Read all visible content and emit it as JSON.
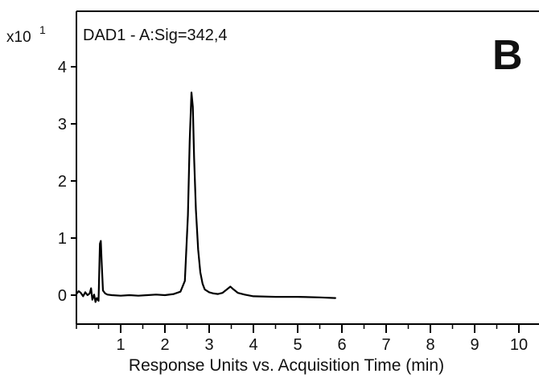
{
  "chart_data": {
    "type": "line",
    "panel_label": "B",
    "signal_label": "DAD1 - A:Sig=342,4",
    "y_multiplier_label": "x10",
    "y_multiplier_exponent": "1",
    "xlabel": "Response Units vs. Acquisition Time (min)",
    "ylabel": "",
    "xlim": [
      0,
      10.3
    ],
    "ylim": [
      -0.5,
      4.6
    ],
    "x_ticks": [
      1,
      2,
      3,
      4,
      5,
      6,
      7,
      8,
      9,
      10
    ],
    "y_ticks": [
      0,
      1,
      2,
      3,
      4
    ],
    "x_minor_ticks": [
      0,
      0.5,
      1.5,
      2.5,
      3.5,
      4.5,
      5.5,
      6.5,
      7.5,
      8.5,
      9.5
    ],
    "grid": false,
    "series": [
      {
        "color": "#000000",
        "x": [
          0.0,
          0.05,
          0.1,
          0.15,
          0.2,
          0.25,
          0.3,
          0.33,
          0.36,
          0.4,
          0.43,
          0.46,
          0.5,
          0.53,
          0.55,
          0.57,
          0.6,
          0.65,
          0.7,
          0.8,
          1.0,
          1.2,
          1.4,
          1.6,
          1.8,
          2.0,
          2.2,
          2.35,
          2.45,
          2.52,
          2.56,
          2.6,
          2.63,
          2.66,
          2.7,
          2.75,
          2.8,
          2.85,
          2.9,
          3.0,
          3.1,
          3.2,
          3.3,
          3.4,
          3.48,
          3.55,
          3.65,
          3.8,
          4.0,
          4.5,
          5.0,
          5.5,
          5.85
        ],
        "y": [
          0.02,
          0.07,
          0.04,
          -0.02,
          0.05,
          0.0,
          0.03,
          0.12,
          -0.08,
          0.01,
          -0.12,
          -0.05,
          -0.1,
          0.9,
          0.95,
          0.6,
          0.08,
          0.03,
          0.01,
          0.0,
          -0.01,
          0.0,
          -0.01,
          0.0,
          0.01,
          0.0,
          0.02,
          0.06,
          0.25,
          1.4,
          2.7,
          3.55,
          3.3,
          2.4,
          1.5,
          0.8,
          0.4,
          0.2,
          0.1,
          0.05,
          0.03,
          0.02,
          0.04,
          0.1,
          0.15,
          0.1,
          0.04,
          0.01,
          -0.02,
          -0.03,
          -0.03,
          -0.04,
          -0.05
        ]
      }
    ]
  }
}
